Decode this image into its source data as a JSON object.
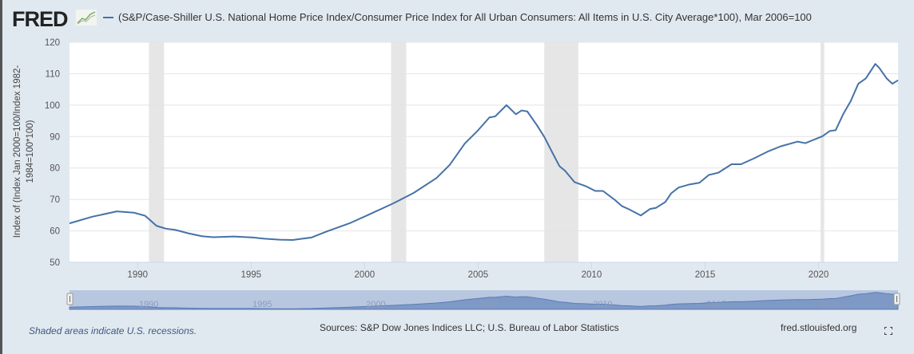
{
  "header": {
    "logo": "FRED",
    "logo_icon": "chart-line-icon",
    "series_title": "(S&P/Case-Shiller U.S. National Home Price Index/Consumer Price Index for All Urban Consumers: All Items in U.S. City Average*100), Mar 2006=100"
  },
  "footer": {
    "recession_note": "Shaded areas indicate U.S. recessions.",
    "sources": "Sources: S&P Dow Jones Indices LLC; U.S. Bureau of Labor Statistics",
    "site": "fred.stlouisfed.org",
    "fullscreen_icon": "fullscreen-icon"
  },
  "chart_data": {
    "type": "line",
    "title": "(S&P/Case-Shiller U.S. National Home Price Index/Consumer Price Index for All Urban Consumers: All Items in U.S. City Average*100), Mar 2006=100",
    "ylabel": "Index of (Index Jan 2000=100/Index 1982-1984=100*100)",
    "xlabel": "",
    "xlim": [
      "1987-01",
      "2023-07"
    ],
    "ylim": [
      50,
      120
    ],
    "yticks": [
      "50",
      "60",
      "70",
      "80",
      "90",
      "100",
      "110",
      "120"
    ],
    "xticks": [
      "1990",
      "1995",
      "2000",
      "2005",
      "2010",
      "2015",
      "2020"
    ],
    "grid": true,
    "line_color": "#4572a7",
    "recession_color": "#e6e6e6",
    "recessions": [
      [
        "1990-07",
        "1991-03"
      ],
      [
        "2001-03",
        "2001-11"
      ],
      [
        "2007-12",
        "2009-06"
      ],
      [
        "2020-02",
        "2020-04"
      ]
    ],
    "series": [
      {
        "name": "(S&P/Case-Shiller U.S. National Home Price Index/Consumer Price Index for All Urban Consumers: All Items in U.S. City Average*100), Mar 2006=100",
        "x": [
          "1987-01",
          "1988-01",
          "1989-02",
          "1989-11",
          "1990-05",
          "1990-11",
          "1991-04",
          "1991-09",
          "1992-04",
          "1992-11",
          "1993-05",
          "1994-04",
          "1995-02",
          "1995-08",
          "1996-04",
          "1996-11",
          "1997-09",
          "1998-05",
          "1999-05",
          "2000-03",
          "2001-04",
          "2002-03",
          "2003-03",
          "2003-10",
          "2004-06",
          "2005-01",
          "2005-07",
          "2005-10",
          "2006-04",
          "2006-09",
          "2006-12",
          "2007-03",
          "2007-08",
          "2007-12",
          "2008-04",
          "2008-08",
          "2008-11",
          "2009-04",
          "2009-10",
          "2010-03",
          "2010-07",
          "2011-01",
          "2011-05",
          "2011-09",
          "2012-03",
          "2012-08",
          "2012-11",
          "2013-04",
          "2013-07",
          "2013-11",
          "2014-05",
          "2014-10",
          "2015-03",
          "2015-08",
          "2016-03",
          "2016-08",
          "2017-03",
          "2017-10",
          "2018-05",
          "2019-02",
          "2019-06",
          "2020-03",
          "2020-07",
          "2020-10",
          "2021-02",
          "2021-06",
          "2021-10",
          "2022-02",
          "2022-07",
          "2022-09",
          "2023-01",
          "2023-04",
          "2023-07"
        ],
        "y": [
          62.4,
          64.5,
          66.2,
          65.8,
          64.8,
          61.6,
          60.7,
          60.3,
          59.2,
          58.3,
          58.0,
          58.2,
          57.9,
          57.5,
          57.2,
          57.1,
          57.9,
          59.8,
          62.4,
          65.1,
          68.7,
          72.1,
          76.8,
          81.0,
          87.8,
          92.0,
          96.1,
          96.4,
          100.0,
          97.1,
          98.3,
          98.0,
          93.7,
          89.9,
          85.2,
          80.6,
          79.1,
          75.5,
          74.2,
          72.7,
          72.7,
          70.0,
          67.9,
          66.8,
          64.9,
          67.0,
          67.3,
          69.2,
          71.9,
          73.8,
          74.8,
          75.3,
          77.8,
          78.5,
          81.2,
          81.2,
          83.1,
          85.2,
          86.9,
          88.4,
          87.9,
          90.1,
          91.8,
          92.0,
          97.1,
          101.3,
          106.8,
          108.5,
          113.1,
          111.9,
          108.5,
          106.8,
          107.9
        ]
      }
    ],
    "navigator": {
      "xticks": [
        "1990",
        "1995",
        "2000",
        "2005",
        "2010",
        "2015",
        "2020"
      ]
    }
  }
}
